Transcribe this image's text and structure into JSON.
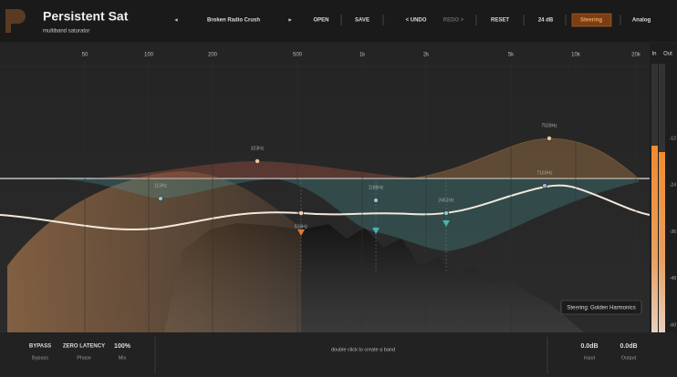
{
  "header": {
    "title": "Persistent Sat",
    "subtitle": "multiband saturator",
    "preset": "Broken Radio Crush",
    "buttons": [
      "OPEN",
      "SAVE",
      "< UNDO",
      "REDO >",
      "RESET",
      "24 dB",
      "Steering",
      "Analog"
    ]
  },
  "graph": {
    "frequency_labels": [
      "50",
      "100",
      "200",
      "500",
      "1k",
      "2k",
      "5k",
      "10k",
      "20k"
    ],
    "band_labels": [
      "113Hz",
      "323Hz",
      "559Hz",
      "1188Hz",
      "2451Hz",
      "7160Hz",
      "7528Hz"
    ],
    "tooltip": "Steering: Golden Harmonics",
    "hint": "double click to create a band"
  },
  "meter": {
    "in_label": "In",
    "out_label": "Out",
    "scale": [
      "-12",
      "-24",
      "-36",
      "-48",
      "-60"
    ]
  },
  "footer": {
    "controls": [
      {
        "value": "BYPASS",
        "label": "Bypass"
      },
      {
        "value": "ZERO LATENCY",
        "label": "Phase"
      },
      {
        "value": "100%",
        "label": "Mix"
      }
    ],
    "input": {
      "value": "0.0dB",
      "label": "Input"
    },
    "output": {
      "value": "0.0dB",
      "label": "Output"
    }
  }
}
